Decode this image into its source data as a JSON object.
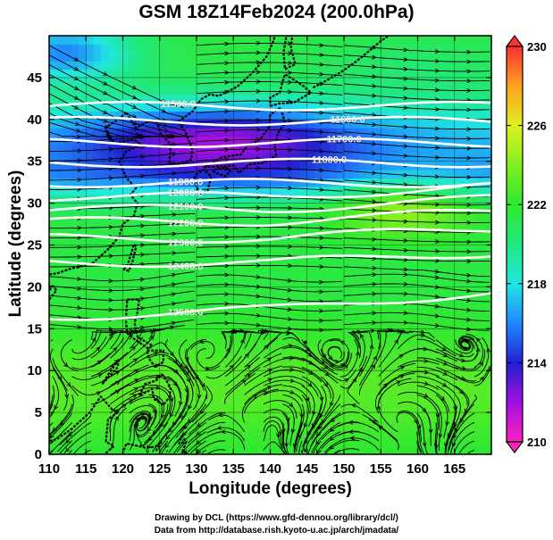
{
  "title": "GSM 18Z14Feb2024 (200.0hPa)",
  "credits": [
    "Drawing by DCL (https://www.gfd-dennou.org/library/dcl/)",
    "Data from http://database.rish.kyoto-u.ac.jp/arch/jmadata/"
  ],
  "chart_data": {
    "type": "heatmap",
    "title": "GSM 18Z14Feb2024 (200.0hPa)",
    "xlabel": "Longitude (degrees)",
    "ylabel": "Latitude  (degrees)",
    "xlim": [
      110,
      170
    ],
    "ylim": [
      0,
      50
    ],
    "x_ticks": [
      110,
      115,
      120,
      125,
      130,
      135,
      140,
      145,
      150,
      155,
      160,
      165
    ],
    "y_ticks": [
      0,
      5,
      10,
      15,
      20,
      25,
      30,
      35,
      40,
      45
    ],
    "colorbar": {
      "ticks": [
        230,
        226,
        222,
        218,
        214,
        210
      ],
      "range": [
        210,
        230
      ],
      "stops": [
        {
          "value": 210,
          "color": "#ff20c0"
        },
        {
          "value": 212,
          "color": "#a010e0"
        },
        {
          "value": 214,
          "color": "#2020d0"
        },
        {
          "value": 216,
          "color": "#2088ff"
        },
        {
          "value": 218,
          "color": "#20e8e0"
        },
        {
          "value": 220,
          "color": "#20e880"
        },
        {
          "value": 222,
          "color": "#30e830"
        },
        {
          "value": 224,
          "color": "#80f020"
        },
        {
          "value": 226,
          "color": "#e0f020"
        },
        {
          "value": 228,
          "color": "#ffa020"
        },
        {
          "value": 230,
          "color": "#ff3030"
        }
      ]
    },
    "contours": [
      {
        "label": "11500.0",
        "value": 11500
      },
      {
        "label": "11600.0",
        "value": 11600
      },
      {
        "label": "11700.0",
        "value": 11700
      },
      {
        "label": "11800.0",
        "value": 11800
      },
      {
        "label": "11900.0",
        "value": 11900
      },
      {
        "label": "12000.0",
        "value": 12000
      },
      {
        "label": "12100.0",
        "value": 12100
      },
      {
        "label": "12200.0",
        "value": 12200
      },
      {
        "label": "12300.0",
        "value": 12300
      },
      {
        "label": "12400.0",
        "value": 12400
      },
      {
        "label": "12500.0",
        "value": 12500
      }
    ]
  }
}
